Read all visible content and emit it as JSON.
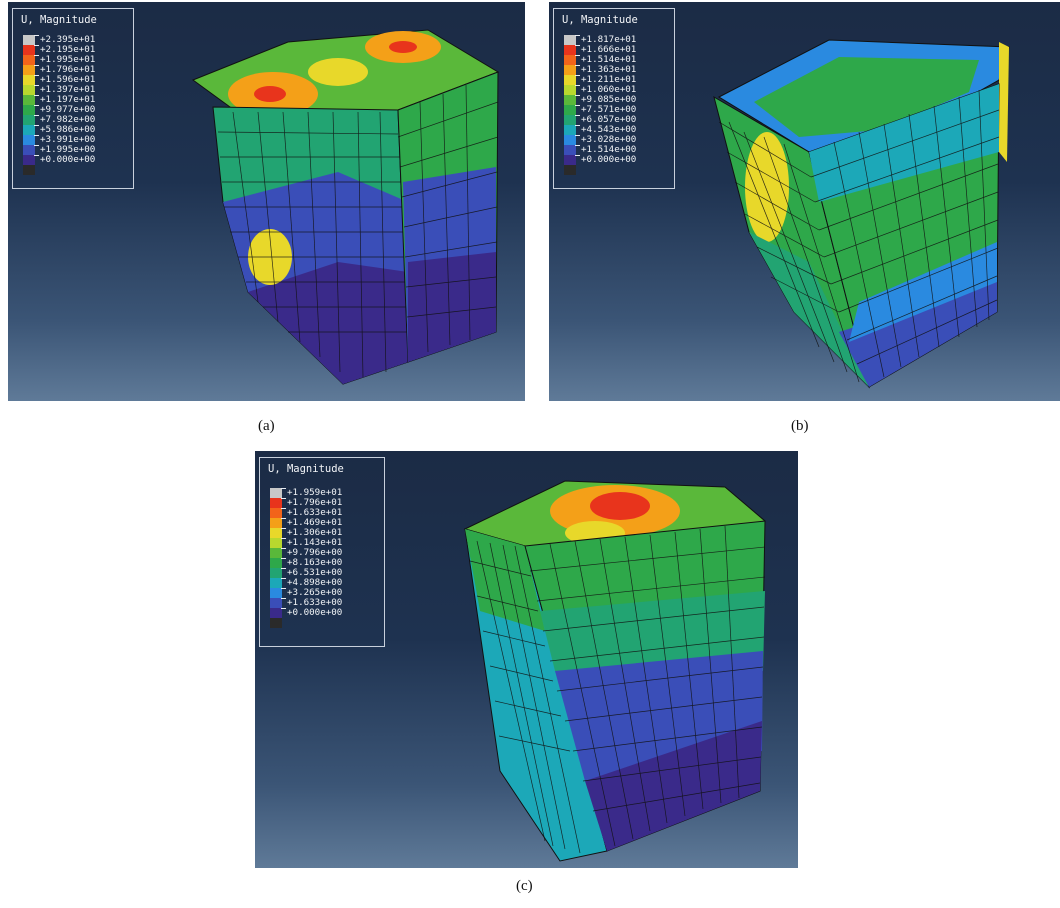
{
  "panels": [
    {
      "caption": "(a)",
      "legend_title": "U, Magnitude",
      "legend_ticks": [
        "+2.395e+01",
        "+2.195e+01",
        "+1.995e+01",
        "+1.796e+01",
        "+1.596e+01",
        "+1.397e+01",
        "+1.197e+01",
        "+9.977e+00",
        "+7.982e+00",
        "+5.986e+00",
        "+3.991e+00",
        "+1.995e+00",
        "+0.000e+00"
      ]
    },
    {
      "caption": "(b)",
      "legend_title": "U, Magnitude",
      "legend_ticks": [
        "+1.817e+01",
        "+1.666e+01",
        "+1.514e+01",
        "+1.363e+01",
        "+1.211e+01",
        "+1.060e+01",
        "+9.085e+00",
        "+7.571e+00",
        "+6.057e+00",
        "+4.543e+00",
        "+3.028e+00",
        "+1.514e+00",
        "+0.000e+00"
      ]
    },
    {
      "caption": "(c)",
      "legend_title": "U, Magnitude",
      "legend_ticks": [
        "+1.959e+01",
        "+1.796e+01",
        "+1.633e+01",
        "+1.469e+01",
        "+1.306e+01",
        "+1.143e+01",
        "+9.796e+00",
        "+8.163e+00",
        "+6.531e+00",
        "+4.898e+00",
        "+3.265e+00",
        "+1.633e+00",
        "+0.000e+00"
      ]
    }
  ],
  "legend_colors": [
    "#c8c8c8",
    "#e8341c",
    "#f2641a",
    "#f4a018",
    "#e8d82a",
    "#b8d82e",
    "#5ab83a",
    "#2ea84a",
    "#22a472",
    "#1ca8b8",
    "#2a8ae0",
    "#3a4eb8",
    "#3a2a8a",
    "#2a2a2a"
  ]
}
